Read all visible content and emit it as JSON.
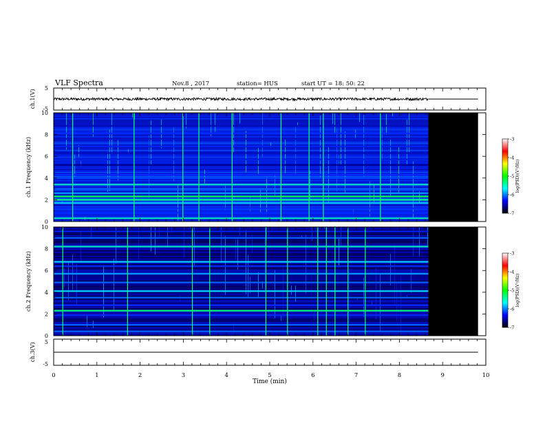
{
  "header": {
    "title": "VLF Spectra",
    "date": "Nov.8 , 2017",
    "station": "station= HUS",
    "start": "start UT = 18: 50: 22"
  },
  "colorbar": {
    "label": "log(PSD)(V²/Hz)",
    "ticks": [
      "-3",
      "-4",
      "-5",
      "-6",
      "-7"
    ],
    "colors": [
      "#ffffff",
      "#ff0000",
      "#ffff00",
      "#00ff00",
      "#00ffff",
      "#0000ff",
      "#000000"
    ]
  },
  "chart_data": [
    {
      "type": "line",
      "panel": "ch1-waveform",
      "ylabel": "ch.1(V)",
      "ylim": [
        -5,
        5
      ],
      "yticks": [
        "5",
        "-5"
      ],
      "xlim": [
        0,
        10
      ],
      "x": [
        0,
        8.67,
        8.67,
        9.82
      ],
      "y": [
        0,
        0,
        0,
        0
      ],
      "note_noise_amplitude": 0.6
    },
    {
      "type": "heatmap",
      "panel": "ch1-spectrogram",
      "ylabel": "ch.1 Frequency (kHz)",
      "ylim": [
        0,
        10
      ],
      "yticks": [
        "0",
        "2",
        "4",
        "6",
        "8",
        "10"
      ],
      "xlim": [
        0,
        10
      ],
      "data_end_min": 8.67,
      "panel_end_min": 9.82,
      "zlim": [
        -7,
        -3
      ],
      "bands_khz": [
        0.3,
        0.8,
        1.2,
        1.7,
        2.0,
        2.3,
        2.6,
        3.0,
        3.4,
        4.0,
        4.3,
        5.2,
        5.7,
        6.3,
        6.9,
        7.6,
        8.1,
        8.8
      ],
      "band_levels": [
        -5.0,
        -5.8,
        -5.8,
        -5.2,
        -4.8,
        -4.6,
        -5.4,
        -5.6,
        -5.0,
        -5.7,
        -5.8,
        -6.5,
        -6.0,
        -6.3,
        -5.9,
        -6.2,
        -5.8,
        -6.3
      ],
      "spikes_min": [
        0.43,
        1.85,
        2.98,
        3.35,
        4.12,
        5.25,
        5.9,
        6.23,
        7.55
      ],
      "background_level": -6.0
    },
    {
      "type": "heatmap",
      "panel": "ch2-spectrogram",
      "ylabel": "ch.2 Frequency (kHz)",
      "ylim": [
        0,
        10
      ],
      "yticks": [
        "0",
        "2",
        "4",
        "6",
        "8",
        "10"
      ],
      "xlim": [
        0,
        10
      ],
      "data_end_min": 8.67,
      "panel_end_min": 9.82,
      "zlim": [
        -7,
        -3
      ],
      "bands_khz": [
        0.4,
        1.0,
        1.9,
        2.3,
        2.8,
        3.5,
        4.1,
        4.9,
        5.7,
        6.4,
        6.8,
        8.2,
        9.0,
        9.6
      ],
      "band_levels": [
        -5.6,
        -5.6,
        -5.8,
        -4.8,
        -5.8,
        -5.6,
        -5.2,
        -5.6,
        -5.4,
        -5.8,
        -5.2,
        -5.0,
        -5.6,
        -6.0
      ],
      "spikes_min": [
        0.2,
        1.7,
        3.2,
        3.6,
        4.9,
        5.4,
        6.1,
        6.3,
        6.5,
        6.8,
        7.2
      ],
      "background_level": -6.5
    },
    {
      "type": "line",
      "panel": "ch3-waveform",
      "ylabel": "ch.3(V)",
      "ylim": [
        -5,
        5
      ],
      "yticks": [
        "5",
        "-5"
      ],
      "xlim": [
        0,
        10
      ],
      "x": [
        0,
        9.82
      ],
      "y": [
        0,
        0
      ]
    }
  ],
  "xaxis": {
    "label": "Time (min)",
    "ticks": [
      "0",
      "1",
      "2",
      "3",
      "4",
      "5",
      "6",
      "7",
      "8",
      "9",
      "10"
    ]
  }
}
